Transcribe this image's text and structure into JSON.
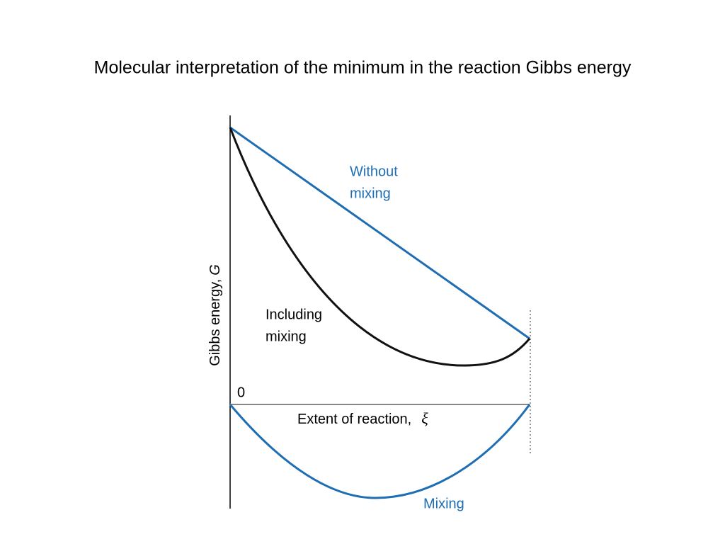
{
  "title": "Molecular interpretation of the minimum in the reaction Gibbs energy",
  "y_axis": {
    "text": "Gibbs energy,",
    "symbol": "G"
  },
  "x_axis": {
    "text": "Extent of reaction,",
    "symbol": "ξ"
  },
  "origin_label": "0",
  "curves": [
    {
      "lines": [
        "Without",
        "mixing"
      ]
    },
    {
      "lines": [
        "Including",
        "mixing"
      ]
    },
    {
      "lines": [
        "Mixing"
      ]
    }
  ]
}
